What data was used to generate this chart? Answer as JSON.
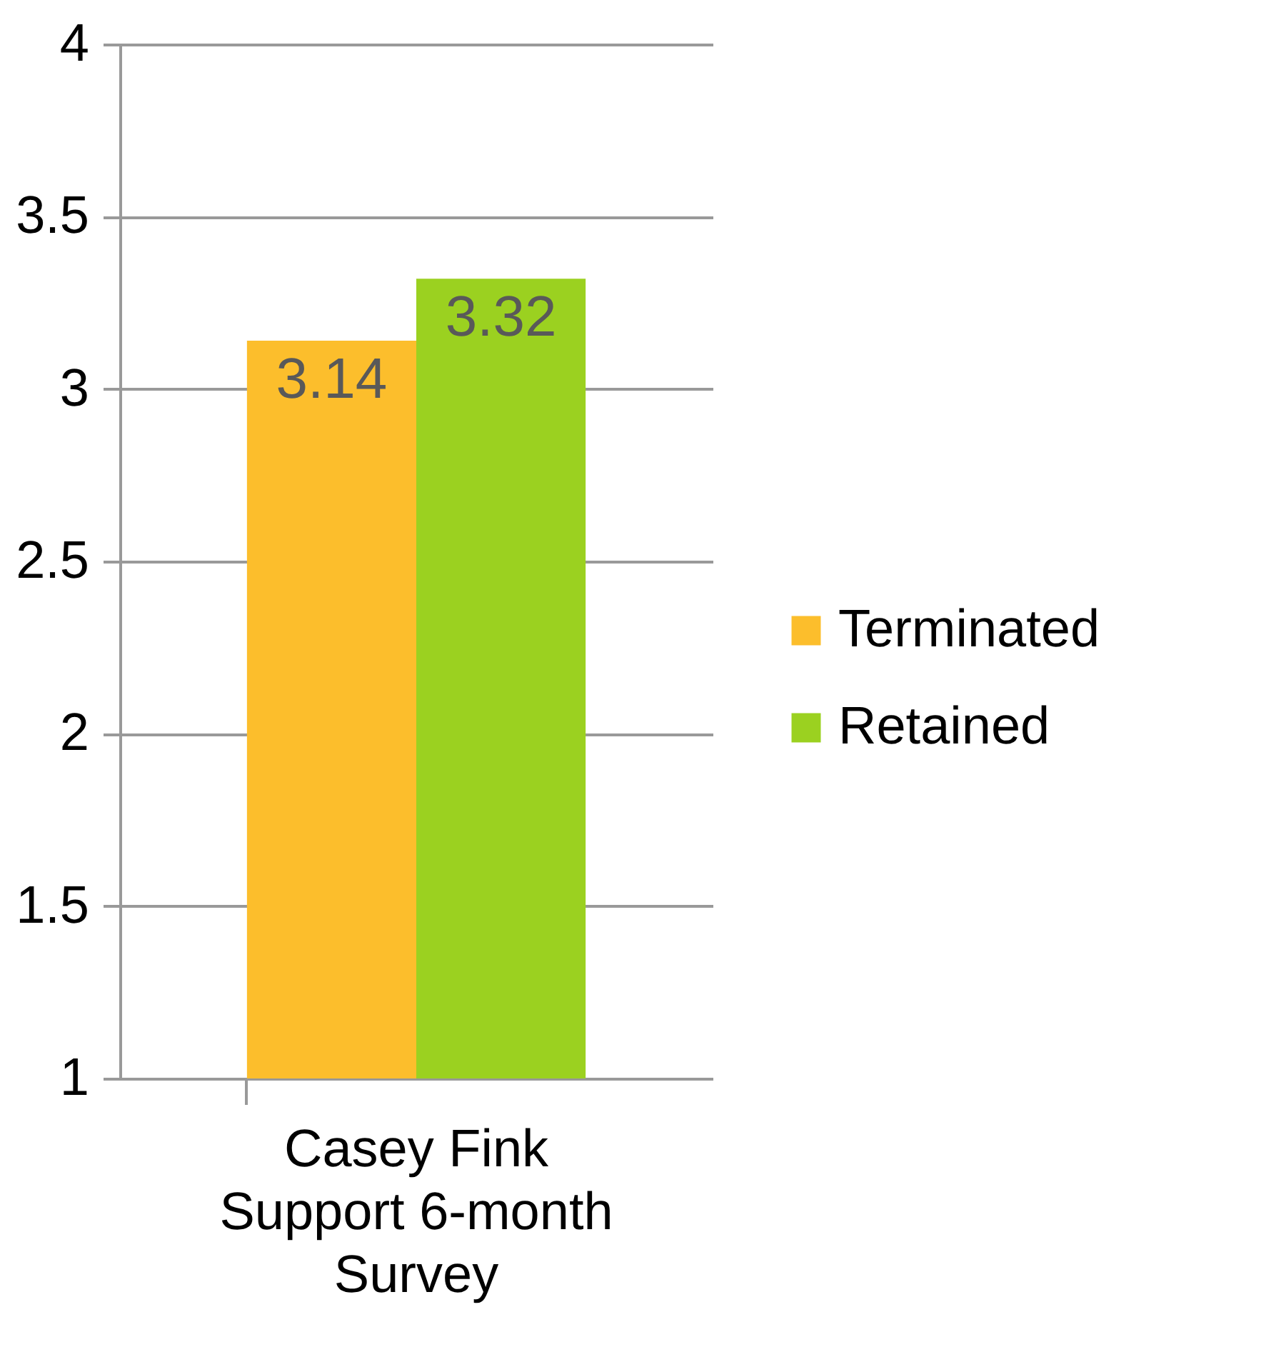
{
  "chart_data": {
    "type": "bar",
    "categories": [
      "Casey Fink Support 6-month Survey"
    ],
    "series": [
      {
        "name": "Terminated",
        "color": "#fcbe2c",
        "values": [
          3.14
        ]
      },
      {
        "name": "Retained",
        "color": "#9bd120",
        "values": [
          3.32
        ]
      }
    ],
    "ylim": [
      1,
      4
    ],
    "yticks": [
      1,
      1.5,
      2,
      2.5,
      3,
      3.5,
      4
    ],
    "grid": "y",
    "legend": "right",
    "data_labels": true
  }
}
